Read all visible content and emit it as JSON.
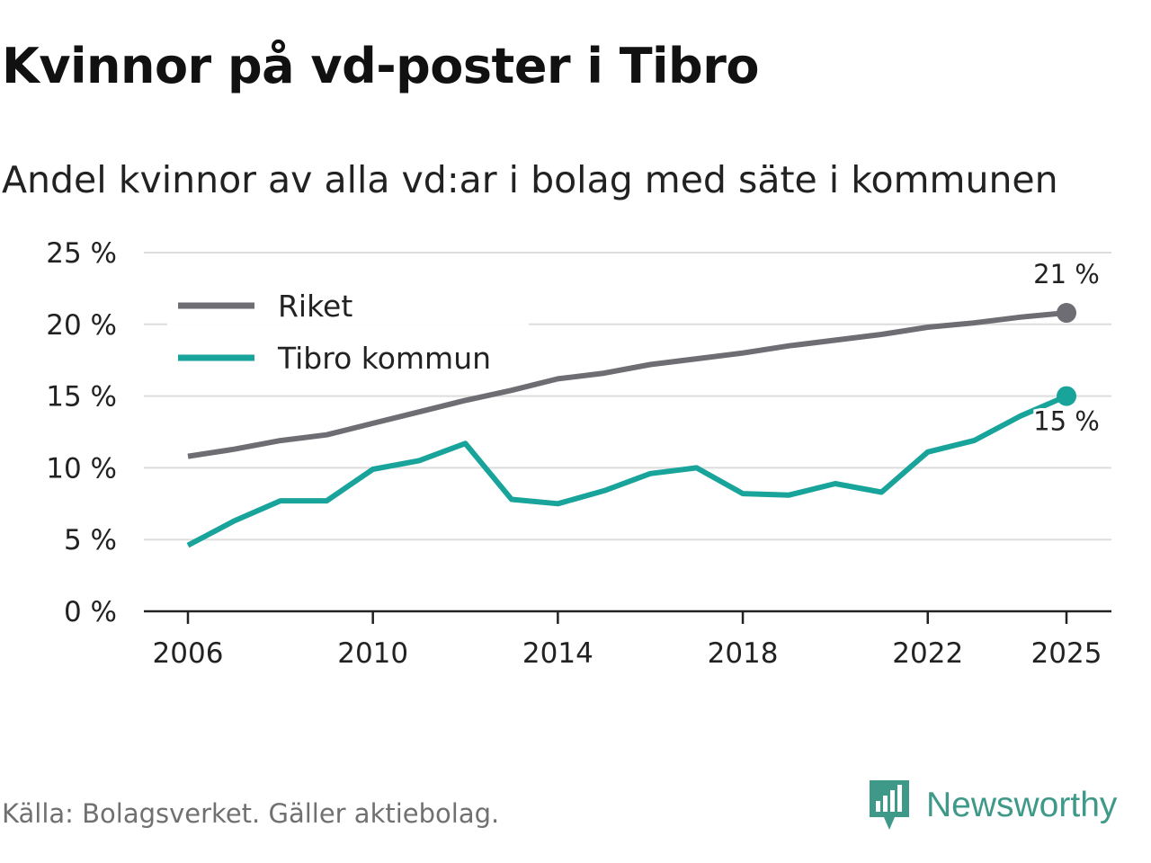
{
  "title": "Kvinnor på vd-poster i Tibro",
  "subtitle": "Andel kvinnor av alla vd:ar i bolag med säte i kommunen",
  "source": "Källa: Bolagsverket. Gäller aktiebolag.",
  "brand": "Newsworthy",
  "colors": {
    "riket": "#6e6d73",
    "tibro": "#18a39b",
    "grid": "#dddddd",
    "axis": "#222222",
    "brand": "#3e9989"
  },
  "chart_data": {
    "type": "line",
    "x": [
      2006,
      2007,
      2008,
      2009,
      2010,
      2011,
      2012,
      2013,
      2014,
      2015,
      2016,
      2017,
      2018,
      2019,
      2020,
      2021,
      2022,
      2023,
      2024,
      2025
    ],
    "series": [
      {
        "name": "Riket",
        "values": [
          10.8,
          11.3,
          11.9,
          12.3,
          13.1,
          13.9,
          14.7,
          15.4,
          16.2,
          16.6,
          17.2,
          17.6,
          18.0,
          18.5,
          18.9,
          19.3,
          19.8,
          20.1,
          20.5,
          20.8
        ]
      },
      {
        "name": "Tibro kommun",
        "values": [
          4.6,
          6.3,
          7.7,
          7.7,
          9.9,
          10.5,
          11.7,
          7.8,
          7.5,
          8.4,
          9.6,
          10.0,
          8.2,
          8.1,
          8.9,
          8.3,
          11.1,
          11.9,
          13.6,
          15.0
        ]
      }
    ],
    "y_ticks": [
      "0 %",
      "5 %",
      "10 %",
      "15 %",
      "20 %",
      "25 %"
    ],
    "y_tick_values": [
      0,
      5,
      10,
      15,
      20,
      25
    ],
    "x_tick_labels": [
      "2006",
      "2010",
      "2014",
      "2018",
      "2022",
      "2025"
    ],
    "x_tick_values": [
      2006,
      2010,
      2014,
      2018,
      2022,
      2025
    ],
    "end_labels": [
      "21 %",
      "15 %"
    ],
    "ylim": [
      0,
      25
    ],
    "xlim": [
      2006,
      2025
    ],
    "grid": true,
    "legend_position": "top-left"
  }
}
